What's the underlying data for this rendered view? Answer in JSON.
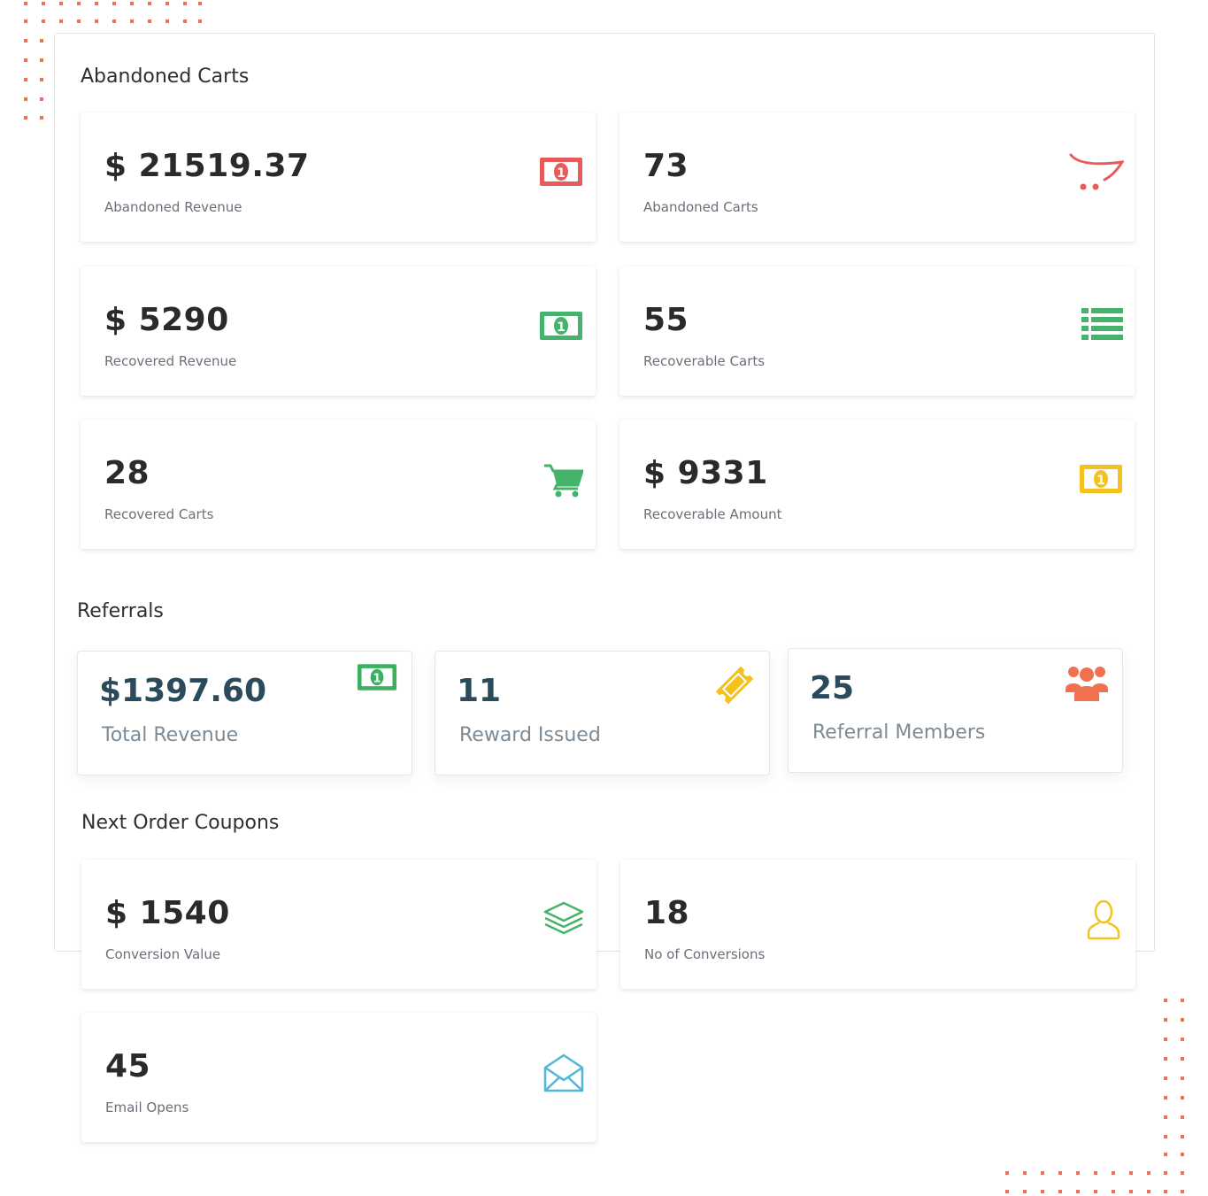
{
  "sections": {
    "abandoned_carts": "Abandoned Carts",
    "referrals": "Referrals",
    "next_order_coupons": "Next Order Coupons"
  },
  "abandoned": [
    {
      "value": "$ 21519.37",
      "label": "Abandoned Revenue",
      "icon": "money-icon",
      "color": "#e85b5b"
    },
    {
      "value": "73",
      "label": "Abandoned Carts",
      "icon": "cart-outline-icon",
      "color": "#e85b5b"
    },
    {
      "value": "$ 5290",
      "label": "Recovered Revenue",
      "icon": "money-icon",
      "color": "#45b36b"
    },
    {
      "value": "55",
      "label": "Recoverable Carts",
      "icon": "list-icon",
      "color": "#45b36b"
    },
    {
      "value": "28",
      "label": "Recovered Carts",
      "icon": "cart-icon",
      "color": "#45b36b"
    },
    {
      "value": "$ 9331",
      "label": "Recoverable Amount",
      "icon": "money-icon",
      "color": "#f4c21f"
    }
  ],
  "referrals": [
    {
      "value": "$1397.60",
      "label": "Total Revenue",
      "icon": "money-icon",
      "color": "#3bb060"
    },
    {
      "value": "11",
      "label": "Reward Issued",
      "icon": "ticket-icon",
      "color": "#f5c017"
    },
    {
      "value": "25",
      "label": "Referral Members",
      "icon": "users-icon",
      "color": "#f07050"
    }
  ],
  "coupons": [
    {
      "value": "$ 1540",
      "label": "Conversion Value",
      "icon": "layers-icon",
      "color": "#45b36b"
    },
    {
      "value": "18",
      "label": "No of Conversions",
      "icon": "user-outline-icon",
      "color": "#f4c21f"
    },
    {
      "value": "45",
      "label": "Email Opens",
      "icon": "envelope-open-icon",
      "color": "#4fb6d6"
    }
  ]
}
